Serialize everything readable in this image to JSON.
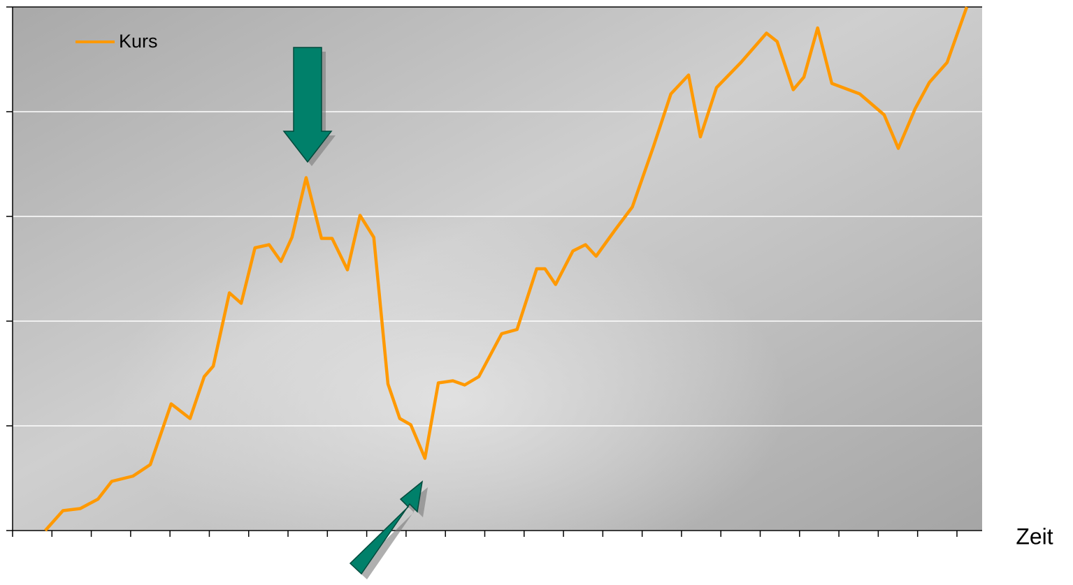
{
  "chart_data": {
    "type": "line",
    "x_label": "Zeit",
    "legend": "top-left",
    "grid": true,
    "xlim": [
      0,
      24.64
    ],
    "xticks": [
      0,
      1,
      2,
      3,
      4,
      5,
      6,
      7,
      8,
      9,
      10,
      11,
      12,
      13,
      14,
      15,
      16,
      17,
      18,
      19,
      20,
      21,
      22,
      23,
      24
    ],
    "ylim": [
      0,
      5
    ],
    "yticks": [
      0,
      1,
      2,
      3,
      4,
      5
    ],
    "x": [
      0.83,
      1.28,
      1.72,
      2.17,
      2.52,
      3.06,
      3.5,
      4.03,
      4.51,
      4.87,
      5.1,
      5.51,
      5.81,
      6.16,
      6.52,
      6.82,
      7.1,
      7.46,
      7.85,
      8.12,
      8.51,
      8.83,
      9.18,
      9.54,
      9.84,
      10.12,
      10.48,
      10.82,
      11.19,
      11.49,
      11.85,
      12.43,
      12.82,
      13.32,
      13.53,
      13.8,
      14.24,
      14.56,
      14.83,
      15.31,
      15.75,
      16.29,
      16.73,
      17.18,
      17.48,
      17.89,
      18.51,
      19.16,
      19.43,
      19.84,
      20.11,
      20.46,
      20.82,
      21.53,
      22.15,
      22.51,
      22.94,
      23.3,
      23.75,
      24.25
    ],
    "series": [
      {
        "name": "Kurs",
        "color": "#ff9900",
        "values": [
          0,
          0.19,
          0.21,
          0.3,
          0.47,
          0.52,
          0.63,
          1.21,
          1.07,
          1.47,
          1.57,
          2.27,
          2.17,
          2.7,
          2.73,
          2.57,
          2.8,
          3.37,
          2.79,
          2.79,
          2.49,
          3.01,
          2.8,
          1.4,
          1.07,
          1.01,
          0.69,
          1.41,
          1.43,
          1.39,
          1.47,
          1.88,
          1.92,
          2.5,
          2.5,
          2.35,
          2.67,
          2.73,
          2.62,
          2.87,
          3.09,
          3.67,
          4.17,
          4.35,
          3.76,
          4.23,
          4.47,
          4.75,
          4.67,
          4.21,
          4.33,
          4.8,
          4.27,
          4.17,
          3.97,
          3.65,
          4.03,
          4.28,
          4.47,
          5.0
        ]
      }
    ]
  }
}
